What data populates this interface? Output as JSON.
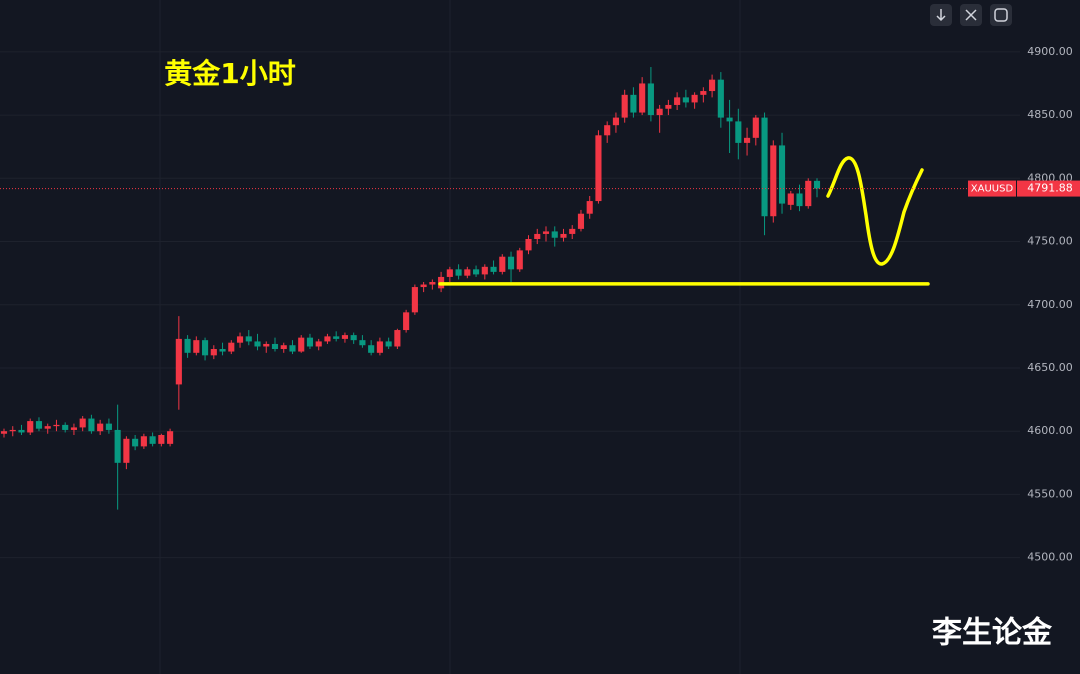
{
  "chart_data": {
    "type": "candlestick",
    "title": "黄金1小时",
    "watermark": "李生论金",
    "symbol": "XAUUSD",
    "last_price": 4791.88,
    "level": 4716.5,
    "up_color": "#f23645",
    "down_color": "#089981",
    "level_color": "#ffff00",
    "ylim": [
      4408,
      4941
    ],
    "yticks": [
      {
        "value": 4500,
        "label": "4500.00"
      },
      {
        "value": 4550,
        "label": "4550.00"
      },
      {
        "value": 4600,
        "label": "4600.00"
      },
      {
        "value": 4650,
        "label": "4650.00"
      },
      {
        "value": 4700,
        "label": "4700.00"
      },
      {
        "value": 4750,
        "label": "4750.00"
      },
      {
        "value": 4800,
        "label": "4800.00"
      },
      {
        "value": 4850,
        "label": "4850.00"
      },
      {
        "value": 4900,
        "label": "4900.00"
      }
    ],
    "grid": true,
    "candles": [
      [
        4598,
        4602,
        4595,
        4600
      ],
      [
        4600,
        4604,
        4596,
        4601
      ],
      [
        4601,
        4605,
        4597,
        4599
      ],
      [
        4599,
        4610,
        4597,
        4608
      ],
      [
        4608,
        4611,
        4600,
        4602
      ],
      [
        4602,
        4606,
        4598,
        4604
      ],
      [
        4604,
        4609,
        4600,
        4605
      ],
      [
        4605,
        4607,
        4599,
        4601
      ],
      [
        4601,
        4606,
        4597,
        4603
      ],
      [
        4603,
        4612,
        4600,
        4610
      ],
      [
        4610,
        4613,
        4598,
        4600
      ],
      [
        4600,
        4609,
        4597,
        4606
      ],
      [
        4606,
        4610,
        4598,
        4601
      ],
      [
        4601,
        4621,
        4538,
        4575
      ],
      [
        4575,
        4596,
        4570,
        4594
      ],
      [
        4594,
        4597,
        4585,
        4588
      ],
      [
        4588,
        4598,
        4586,
        4596
      ],
      [
        4596,
        4599,
        4588,
        4590
      ],
      [
        4590,
        4598,
        4588,
        4597
      ],
      [
        4590,
        4602,
        4588,
        4600
      ],
      [
        4637,
        4691,
        4617,
        4673
      ],
      [
        4673,
        4676,
        4658,
        4662
      ],
      [
        4662,
        4675,
        4660,
        4672
      ],
      [
        4672,
        4674,
        4656,
        4660
      ],
      [
        4660,
        4668,
        4657,
        4665
      ],
      [
        4665,
        4670,
        4660,
        4663
      ],
      [
        4663,
        4672,
        4661,
        4670
      ],
      [
        4670,
        4678,
        4666,
        4675
      ],
      [
        4675,
        4680,
        4668,
        4671
      ],
      [
        4671,
        4677,
        4664,
        4667
      ],
      [
        4667,
        4671,
        4662,
        4669
      ],
      [
        4669,
        4674,
        4663,
        4665
      ],
      [
        4665,
        4670,
        4662,
        4668
      ],
      [
        4668,
        4672,
        4661,
        4663
      ],
      [
        4663,
        4676,
        4662,
        4674
      ],
      [
        4674,
        4677,
        4665,
        4667
      ],
      [
        4667,
        4673,
        4664,
        4671
      ],
      [
        4671,
        4677,
        4669,
        4675
      ],
      [
        4675,
        4679,
        4671,
        4673
      ],
      [
        4673,
        4678,
        4670,
        4676
      ],
      [
        4676,
        4678,
        4669,
        4672
      ],
      [
        4672,
        4676,
        4666,
        4668
      ],
      [
        4668,
        4672,
        4660,
        4662
      ],
      [
        4662,
        4674,
        4660,
        4671
      ],
      [
        4671,
        4674,
        4665,
        4667
      ],
      [
        4667,
        4681,
        4665,
        4680
      ],
      [
        4680,
        4696,
        4678,
        4694
      ],
      [
        4694,
        4716,
        4692,
        4714
      ],
      [
        4714,
        4718,
        4710,
        4716
      ],
      [
        4716,
        4720,
        4712,
        4718
      ],
      [
        4713,
        4726,
        4710,
        4722
      ],
      [
        4722,
        4730,
        4718,
        4728
      ],
      [
        4728,
        4732,
        4720,
        4723
      ],
      [
        4723,
        4730,
        4721,
        4728
      ],
      [
        4728,
        4731,
        4722,
        4724
      ],
      [
        4724,
        4732,
        4720,
        4730
      ],
      [
        4730,
        4735,
        4724,
        4726
      ],
      [
        4726,
        4740,
        4724,
        4738
      ],
      [
        4738,
        4742,
        4718,
        4728
      ],
      [
        4728,
        4745,
        4726,
        4743
      ],
      [
        4743,
        4755,
        4740,
        4752
      ],
      [
        4752,
        4760,
        4748,
        4756
      ],
      [
        4756,
        4762,
        4750,
        4758
      ],
      [
        4758,
        4762,
        4746,
        4753
      ],
      [
        4753,
        4760,
        4750,
        4756
      ],
      [
        4756,
        4763,
        4752,
        4760
      ],
      [
        4760,
        4775,
        4758,
        4772
      ],
      [
        4772,
        4786,
        4768,
        4782
      ],
      [
        4782,
        4838,
        4780,
        4834
      ],
      [
        4834,
        4845,
        4828,
        4842
      ],
      [
        4842,
        4852,
        4836,
        4848
      ],
      [
        4848,
        4870,
        4844,
        4866
      ],
      [
        4866,
        4872,
        4848,
        4852
      ],
      [
        4852,
        4880,
        4850,
        4875
      ],
      [
        4875,
        4888,
        4845,
        4850
      ],
      [
        4850,
        4858,
        4836,
        4855
      ],
      [
        4855,
        4862,
        4850,
        4858
      ],
      [
        4858,
        4868,
        4854,
        4864
      ],
      [
        4864,
        4870,
        4856,
        4860
      ],
      [
        4860,
        4868,
        4855,
        4866
      ],
      [
        4866,
        4872,
        4860,
        4869
      ],
      [
        4869,
        4882,
        4864,
        4878
      ],
      [
        4878,
        4884,
        4840,
        4848
      ],
      [
        4848,
        4862,
        4820,
        4845
      ],
      [
        4845,
        4855,
        4815,
        4828
      ],
      [
        4828,
        4840,
        4818,
        4832
      ],
      [
        4832,
        4850,
        4826,
        4848
      ],
      [
        4848,
        4852,
        4755,
        4770
      ],
      [
        4770,
        4830,
        4765,
        4826
      ],
      [
        4826,
        4836,
        4772,
        4780
      ],
      [
        4779,
        4790,
        4775,
        4788
      ],
      [
        4788,
        4795,
        4774,
        4778
      ],
      [
        4778,
        4800,
        4776,
        4798
      ],
      [
        4798,
        4800,
        4785,
        4791.88
      ]
    ]
  }
}
